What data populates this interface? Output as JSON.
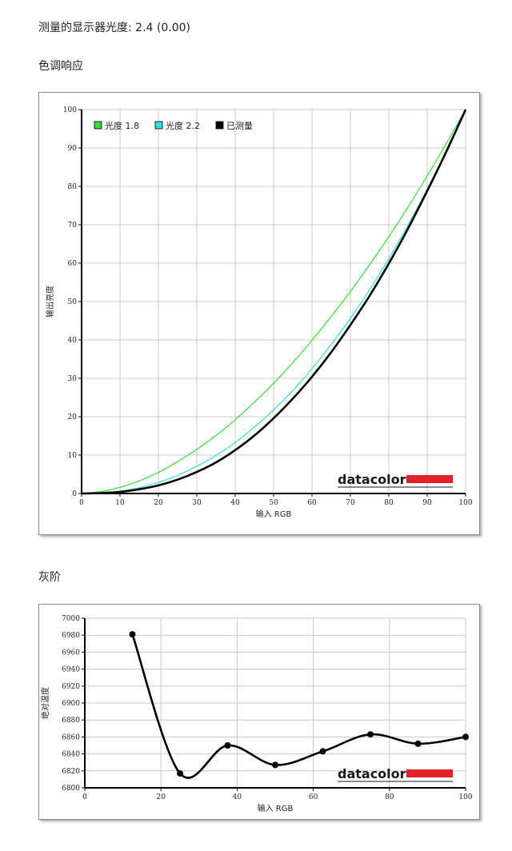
{
  "header": {
    "gamma_label": "测量的显示器光度: 2.4 (0.00)",
    "tone_response_title": "色调响应",
    "grayscale_title": "灰阶"
  },
  "brand": "datacolor",
  "colors": {
    "gamma18": "#33e033",
    "gamma22": "#33dddd",
    "measured": "#000000",
    "brand_red": "#e0222b",
    "grid": "#c8c8c8"
  },
  "chart_data": [
    {
      "type": "line",
      "title": "",
      "xlabel": "输入 RGB",
      "ylabel": "输出亮度",
      "xlim": [
        0,
        100
      ],
      "ylim": [
        0,
        100
      ],
      "x_ticks": [
        0,
        10,
        20,
        30,
        40,
        50,
        60,
        70,
        80,
        90,
        100
      ],
      "y_ticks": [
        0,
        10,
        20,
        30,
        40,
        50,
        60,
        70,
        80,
        90,
        100
      ],
      "grid": true,
      "legend_position": "top-left",
      "series": [
        {
          "name": "光度 1.8",
          "color": "#33e033",
          "x": [
            0,
            5,
            10,
            15,
            20,
            25,
            30,
            35,
            40,
            45,
            50,
            55,
            60,
            65,
            70,
            75,
            80,
            85,
            90,
            95,
            100
          ],
          "y": [
            0,
            0.5,
            1.6,
            3.3,
            5.5,
            8.3,
            11.5,
            15.1,
            19.2,
            23.8,
            28.7,
            34.1,
            39.9,
            46.1,
            52.6,
            59.6,
            66.9,
            74.6,
            82.7,
            91.2,
            100
          ]
        },
        {
          "name": "光度 2.2",
          "color": "#33dddd",
          "x": [
            0,
            5,
            10,
            15,
            20,
            25,
            30,
            35,
            40,
            45,
            50,
            55,
            60,
            65,
            70,
            75,
            80,
            85,
            90,
            95,
            100
          ],
          "y": [
            0,
            0.1,
            0.6,
            1.5,
            2.9,
            4.7,
            7.1,
            9.9,
            13.3,
            17.3,
            21.8,
            26.8,
            32.5,
            38.8,
            45.6,
            53.1,
            61.2,
            69.9,
            79.3,
            89.3,
            100
          ]
        },
        {
          "name": "已测量",
          "color": "#000000",
          "x": [
            0,
            5,
            10,
            15,
            20,
            25,
            30,
            35,
            40,
            45,
            50,
            55,
            60,
            65,
            70,
            75,
            80,
            85,
            90,
            95,
            100
          ],
          "y": [
            0,
            0.1,
            0.4,
            1.1,
            2.1,
            3.6,
            5.6,
            8.1,
            11.3,
            15.1,
            19.6,
            24.7,
            30.4,
            36.8,
            43.9,
            51.5,
            59.9,
            69.0,
            78.8,
            89.1,
            100
          ]
        }
      ]
    },
    {
      "type": "line",
      "title": "",
      "xlabel": "输入 RGB",
      "ylabel": "绝对温度",
      "xlim": [
        0,
        100
      ],
      "ylim": [
        6800,
        7000
      ],
      "x_ticks": [
        0,
        20,
        40,
        60,
        80,
        100
      ],
      "y_ticks": [
        6800,
        6820,
        6840,
        6860,
        6880,
        6900,
        6920,
        6940,
        6960,
        6980,
        7000
      ],
      "grid": true,
      "series": [
        {
          "name": "",
          "color": "#000000",
          "x": [
            12.5,
            25,
            37.5,
            50,
            62.5,
            75,
            87.5,
            100
          ],
          "y": [
            6981,
            6817,
            6850,
            6827,
            6843,
            6863,
            6852,
            6860
          ]
        }
      ]
    }
  ]
}
